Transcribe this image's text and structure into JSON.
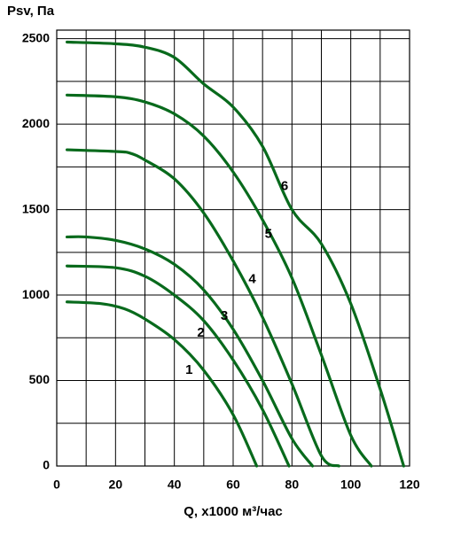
{
  "chart_data": {
    "type": "line",
    "y_label": "Psv, Па",
    "x_label": "Q, x1000 м³/час",
    "xlim": [
      0,
      120
    ],
    "ylim": [
      0,
      2550
    ],
    "xticks": [
      0,
      20,
      40,
      60,
      80,
      100,
      120
    ],
    "yticks": [
      0,
      500,
      1000,
      1500,
      2000,
      2500
    ],
    "xgrid": [
      10,
      30,
      50,
      70,
      90,
      110
    ],
    "ygrid": [
      250,
      750,
      1250,
      1750,
      2250
    ],
    "grid": true,
    "color": "#086a1c",
    "series": [
      {
        "name": "1",
        "x": [
          3.5,
          15,
          23,
          30,
          40,
          50,
          60,
          68
        ],
        "values": [
          960,
          950,
          920,
          860,
          740,
          560,
          300,
          0
        ]
      },
      {
        "name": "2",
        "x": [
          3.5,
          20,
          30,
          40,
          50,
          60,
          70,
          79
        ],
        "values": [
          1170,
          1160,
          1110,
          1000,
          850,
          620,
          330,
          0
        ]
      },
      {
        "name": "3",
        "x": [
          3.5,
          10,
          20,
          30,
          40,
          50,
          60,
          70,
          80,
          87
        ],
        "values": [
          1340,
          1340,
          1320,
          1270,
          1180,
          1030,
          800,
          500,
          160,
          0
        ]
      },
      {
        "name": "4",
        "x": [
          3.5,
          20,
          25,
          30,
          40,
          50,
          60,
          70,
          80,
          90,
          96
        ],
        "values": [
          1850,
          1840,
          1830,
          1790,
          1680,
          1480,
          1200,
          870,
          480,
          60,
          0
        ]
      },
      {
        "name": "5",
        "x": [
          3.5,
          20,
          30,
          40,
          50,
          60,
          70,
          80,
          90,
          100,
          107
        ],
        "values": [
          2170,
          2160,
          2130,
          2060,
          1930,
          1720,
          1440,
          1100,
          650,
          180,
          0
        ]
      },
      {
        "name": "6",
        "x": [
          3.5,
          20,
          30,
          40,
          50,
          60,
          70,
          80,
          90,
          100,
          110,
          118
        ],
        "values": [
          2480,
          2470,
          2450,
          2390,
          2235,
          2100,
          1870,
          1500,
          1300,
          950,
          450,
          0
        ]
      }
    ]
  }
}
